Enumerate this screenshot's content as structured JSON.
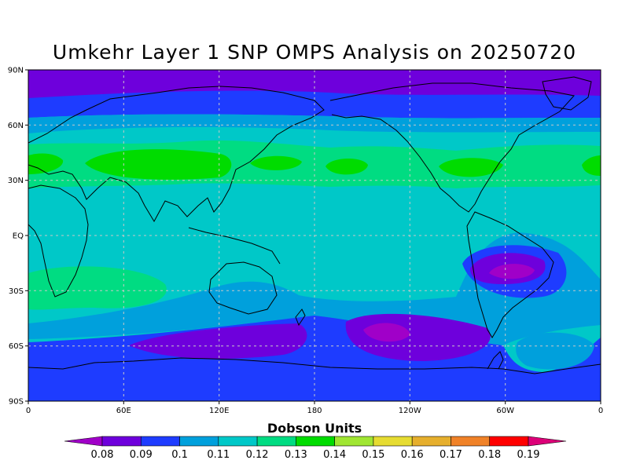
{
  "map": {
    "title": "Umkehr Layer 1 SNP OMPS Analysis on 20250720",
    "y_ticks": [
      "90N",
      "60N",
      "30N",
      "EQ",
      "30S",
      "60S",
      "90S"
    ],
    "x_ticks": [
      "0",
      "60E",
      "120E",
      "180",
      "120W",
      "60W",
      "0"
    ],
    "projection": "cylindrical equidistant",
    "grid": true,
    "land_outlines": true
  },
  "colorbar": {
    "title": "Dobson Units",
    "levels": [
      "0.08",
      "0.09",
      "0.1",
      "0.11",
      "0.12",
      "0.13",
      "0.14",
      "0.15",
      "0.16",
      "0.17",
      "0.18",
      "0.19"
    ],
    "colors": [
      "#a000c8",
      "#6e00dc",
      "#1e3cff",
      "#00a0dc",
      "#00c8c8",
      "#00dc82",
      "#00dc00",
      "#a0e632",
      "#e6dc32",
      "#e6af2d",
      "#f08228",
      "#ff0000",
      "#dc0078"
    ]
  }
}
